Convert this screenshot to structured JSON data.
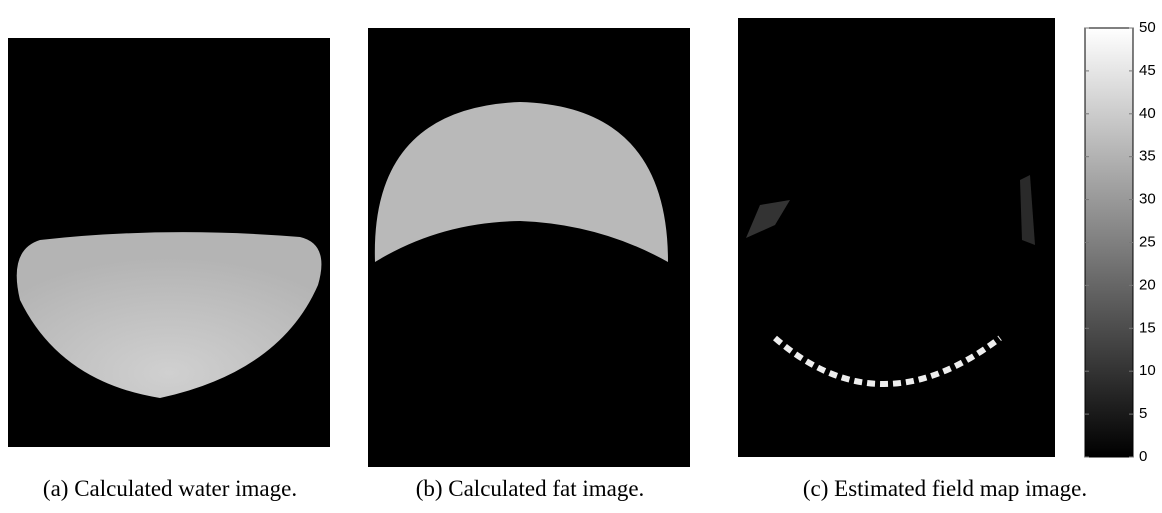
{
  "panels": [
    {
      "caption": "(a) Calculated water image."
    },
    {
      "caption": "(b) Calculated fat image."
    },
    {
      "caption": "(c) Estimated field map image."
    }
  ],
  "colorbar": {
    "lim": [
      0,
      50
    ],
    "ticks": [
      0,
      5,
      10,
      15,
      20,
      25,
      30,
      35,
      40,
      45,
      50
    ]
  }
}
